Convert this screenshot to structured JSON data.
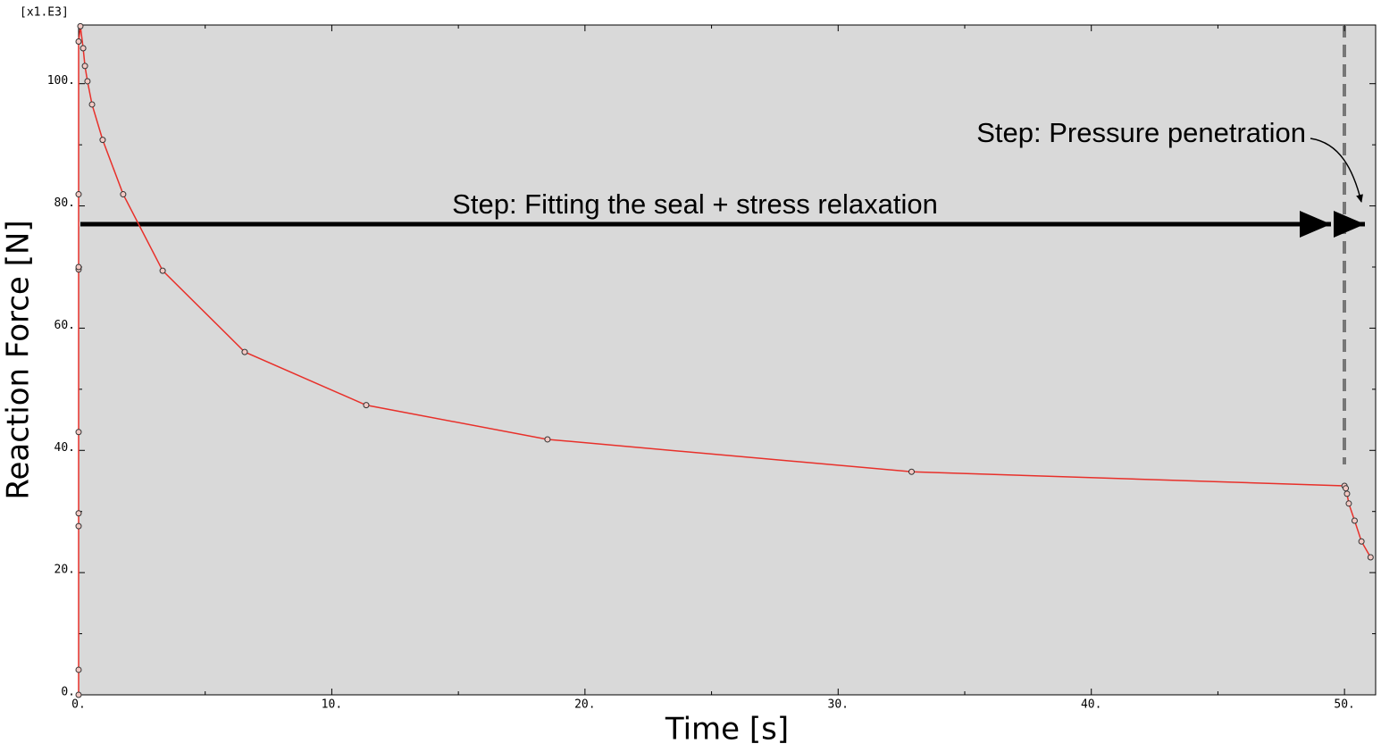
{
  "chart_data": {
    "type": "line",
    "x_label": "Time [s]",
    "y_label": "Reaction Force [N]",
    "y_multiplier": "[x1.E3]",
    "annotations": [
      "Step: Fitting the seal + stress relaxation",
      "Step: Pressure penetration"
    ],
    "series": [
      {
        "color": "#e8302a",
        "x": [
          0,
          0,
          0,
          0,
          0,
          0,
          0,
          0,
          0,
          0.07,
          0.18,
          0.25,
          0.35,
          0.53,
          0.95,
          1.76,
          3.32,
          6.56,
          11.36,
          18.52,
          32.9,
          50.0,
          50.05,
          50.1,
          50.17,
          50.4,
          50.67,
          51.03
        ],
        "values": [
          0,
          4.1,
          27.6,
          29.7,
          43,
          69.6,
          70,
          81.9,
          106.9,
          109.4,
          105.8,
          102.9,
          100.4,
          96.6,
          90.8,
          81.9,
          69.4,
          56.1,
          47.4,
          41.8,
          36.5,
          34.2,
          33.8,
          32.9,
          31.3,
          28.5,
          25.1,
          22.5
        ]
      }
    ],
    "xlim": [
      0,
      51.23
    ],
    "ylim": [
      0,
      109.6
    ],
    "xticks": [
      {
        "value": 0,
        "label": "0."
      },
      {
        "value": 10,
        "label": "10."
      },
      {
        "value": 20,
        "label": "20."
      },
      {
        "value": 30,
        "label": "30."
      },
      {
        "value": 40,
        "label": "40."
      },
      {
        "value": 50,
        "label": "50."
      }
    ],
    "yticks": [
      {
        "value": 0,
        "label": "0."
      },
      {
        "value": 20,
        "label": "20."
      },
      {
        "value": 40,
        "label": "40."
      },
      {
        "value": 60,
        "label": "60."
      },
      {
        "value": 80,
        "label": "80."
      },
      {
        "value": 100,
        "label": "100."
      }
    ],
    "x_minor_ticks": [
      5,
      15,
      25,
      35,
      45
    ],
    "y_minor_ticks": [
      10,
      30,
      50,
      70,
      90
    ]
  }
}
